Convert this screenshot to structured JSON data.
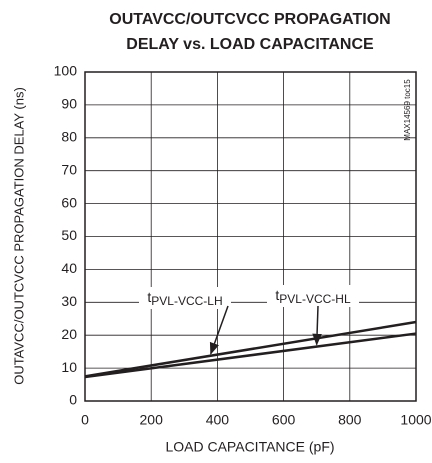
{
  "chart_data": {
    "type": "line",
    "title": [
      "OUTAVCC/OUTCVCC PROPAGATION",
      "DELAY vs. LOAD CAPACITANCE"
    ],
    "xlabel": "LOAD CAPACITANCE (pF)",
    "ylabel": "OUTAVCC/OUTCVCC PROPAGATION DELAY (ns)",
    "note": "MAX14569 toc15",
    "x": [
      0,
      1000
    ],
    "series": [
      {
        "name": "tPVL-VCC-LH",
        "color": "#231f20",
        "values": [
          7.5,
          24
        ]
      },
      {
        "name": "tPVL-VCC-HL",
        "color": "#231f20",
        "values": [
          7.3,
          20.5
        ]
      }
    ],
    "xlim": [
      0,
      1000
    ],
    "xticks": [
      0,
      200,
      400,
      600,
      800,
      1000
    ],
    "ylim": [
      0,
      100
    ],
    "yticks": [
      0,
      10,
      20,
      30,
      40,
      50,
      60,
      70,
      80,
      90,
      100
    ],
    "grid": true
  }
}
